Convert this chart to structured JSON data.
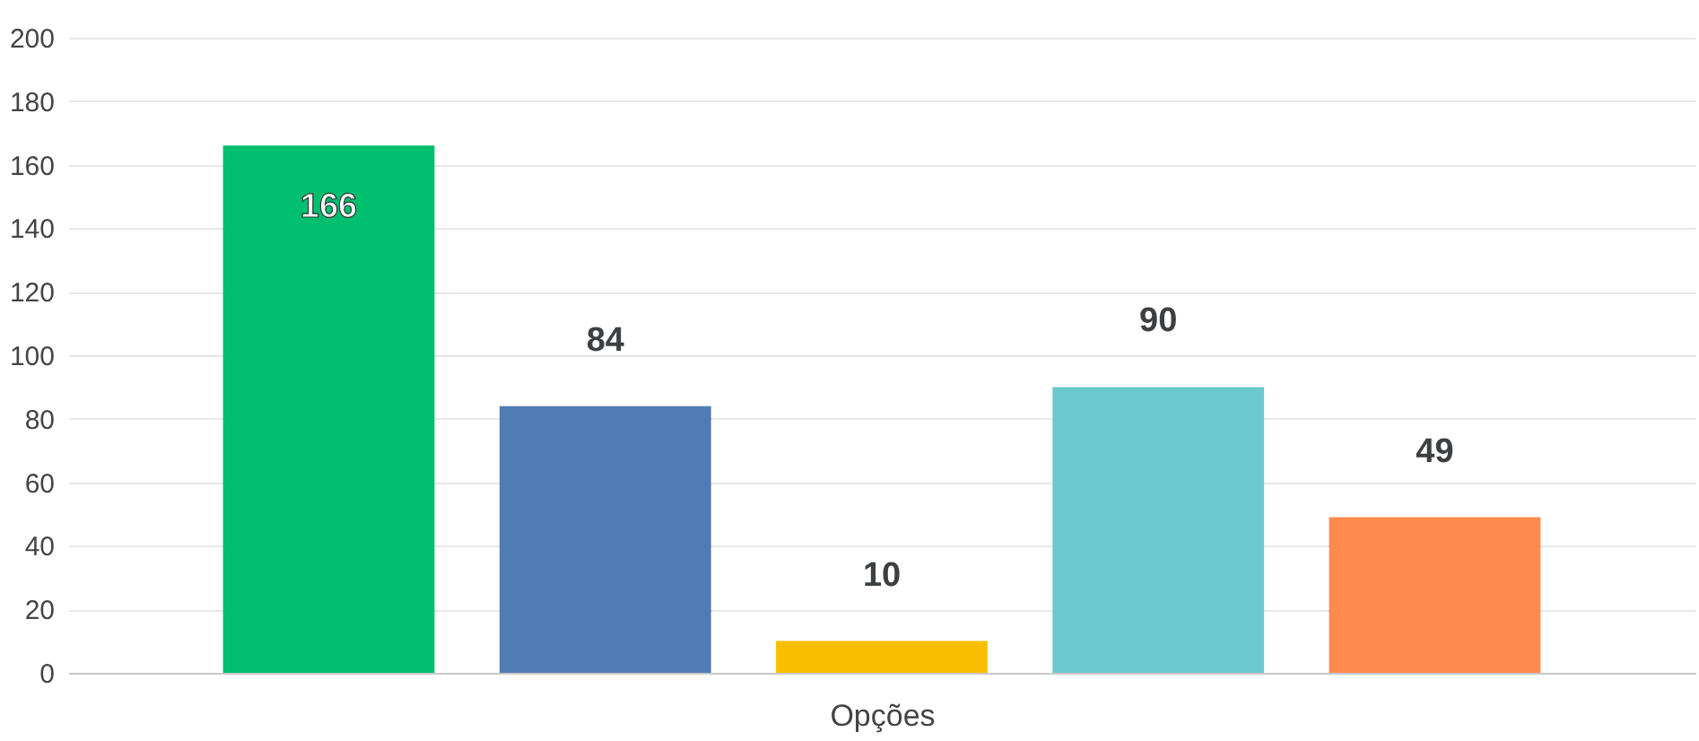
{
  "chart_data": {
    "type": "bar",
    "xlabel": "Opções",
    "categories": [
      null,
      null,
      null,
      null,
      null
    ],
    "values": [
      166,
      84,
      10,
      90,
      49
    ],
    "colors": [
      "#00bf6f",
      "#507cb6",
      "#f9be00",
      "#6bc8cd",
      "#ff8b4f"
    ],
    "ylim": [
      0,
      200
    ],
    "yticks": [
      0,
      20,
      40,
      60,
      80,
      100,
      120,
      140,
      160,
      180,
      200
    ],
    "grid": "y",
    "data_labels": true
  }
}
